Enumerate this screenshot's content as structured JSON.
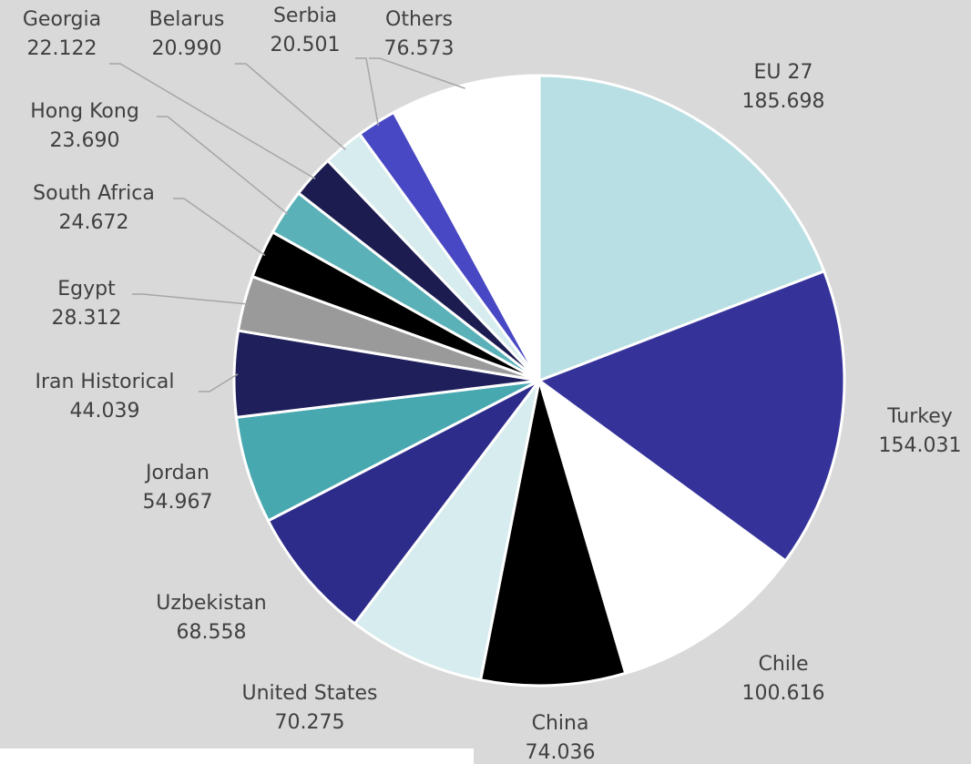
{
  "chart_data": {
    "type": "pie",
    "categories": [
      "EU 27",
      "Turkey",
      "Chile",
      "China",
      "United States",
      "Uzbekistan",
      "Jordan",
      "Iran Historical",
      "Egypt",
      "South Africa",
      "Hong Kong",
      "Georgia",
      "Belarus",
      "Serbia",
      "Others"
    ],
    "values": [
      185.698,
      154.031,
      100.616,
      74.036,
      70.275,
      68.558,
      54.967,
      44.039,
      28.312,
      24.672,
      23.69,
      22.122,
      20.99,
      20.501,
      76.573
    ],
    "value_labels": [
      "185.698",
      "154.031",
      "100.616",
      "74.036",
      "70.275",
      "68.558",
      "54.967",
      "44.039",
      "28.312",
      "24.672",
      "23.690",
      "22.122",
      "20.990",
      "20.501",
      "76.573"
    ],
    "colors": [
      "#b8dfe3",
      "#35339a",
      "#ffffff",
      "#000000",
      "#d6ecee",
      "#2e2c8a",
      "#48a8b0",
      "#1f1f5c",
      "#9a9a9a",
      "#000000",
      "#5ab1b8",
      "#1c1c50",
      "#d6ecee",
      "#4848c4",
      "#ffffff"
    ]
  }
}
